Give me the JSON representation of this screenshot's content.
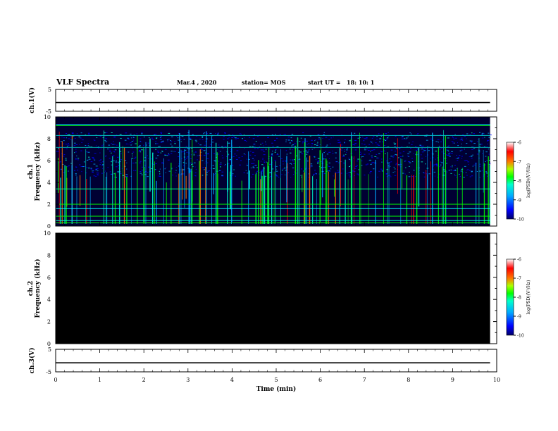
{
  "header": {
    "title": "VLF Spectra",
    "date": "Mar.4 , 2020",
    "station": "station= MOS",
    "start_label": "start UT =",
    "start_time": "18: 10: 1"
  },
  "colors": {
    "spectrogram_background": "#000033",
    "empty_panel": "#000000",
    "trace": "#000000",
    "colormap": [
      "#000066",
      "#0000ff",
      "#00aaff",
      "#00ffcc",
      "#00ff00",
      "#aaff00",
      "#ff7700",
      "#ff0000",
      "#ffffff"
    ]
  },
  "chart_data": [
    {
      "type": "line",
      "panel": "ch1",
      "ylabel": "ch.1(V)",
      "ylim": [
        -5,
        5
      ],
      "yticks": [
        "5",
        "-5"
      ],
      "series": [
        {
          "x": [
            0,
            9.85
          ],
          "values": [
            -1,
            -1
          ]
        }
      ]
    },
    {
      "type": "heatmap",
      "panel": "ch1-spectrogram",
      "ylabel_top": "ch.1",
      "ylabel": "Frequency (kHz)",
      "ylim": [
        0,
        10
      ],
      "yticks": [
        "0",
        "2",
        "4",
        "6",
        "8",
        "10"
      ],
      "data_extent_min": [
        0,
        9.85
      ],
      "horizontal_lines_khz": [
        {
          "f": 9.3,
          "color": "#00ccff"
        },
        {
          "f": 9.2,
          "color": "#00ff00"
        },
        {
          "f": 8.3,
          "color": "#00cccc"
        },
        {
          "f": 7.2,
          "color": "#00aaaa"
        },
        {
          "f": 3.4,
          "color": "#00ff88"
        },
        {
          "f": 2.0,
          "color": "#00ff00"
        },
        {
          "f": 1.6,
          "color": "#00ffff"
        },
        {
          "f": 0.9,
          "color": "#00ff00"
        },
        {
          "f": 0.5,
          "color": "#00ffcc"
        },
        {
          "f": 0.3,
          "color": "#00ff00"
        }
      ],
      "colorbar": {
        "label": "log(PSD)(V²/Hz)",
        "range": [
          -10,
          -6
        ],
        "ticks": [
          "-6",
          "-7",
          "-8",
          "-9",
          "-10"
        ]
      }
    },
    {
      "type": "heatmap",
      "panel": "ch2-spectrogram",
      "ylabel_top": "ch.2",
      "ylabel": "Frequency (kHz)",
      "ylim": [
        0,
        10
      ],
      "yticks": [
        "0",
        "2",
        "4",
        "6",
        "8",
        "10"
      ],
      "data_extent_min": [
        0,
        9.85
      ],
      "colorbar": {
        "label": "log(PSD)(V²/Hz)",
        "range": [
          -10,
          -6
        ],
        "ticks": [
          "-6",
          "-7",
          "-8",
          "-9",
          "-10"
        ]
      }
    },
    {
      "type": "line",
      "panel": "ch3",
      "ylabel": "ch.3(V)",
      "ylim": [
        -5,
        5
      ],
      "yticks": [
        "5",
        "-5"
      ],
      "series": [
        {
          "x": [
            0,
            9.85
          ],
          "values": [
            -1,
            -1
          ]
        }
      ]
    }
  ],
  "xaxis": {
    "label": "Time (min)",
    "range": [
      0,
      10
    ],
    "ticks": [
      "0",
      "1",
      "2",
      "3",
      "4",
      "5",
      "6",
      "7",
      "8",
      "9",
      "10"
    ]
  }
}
